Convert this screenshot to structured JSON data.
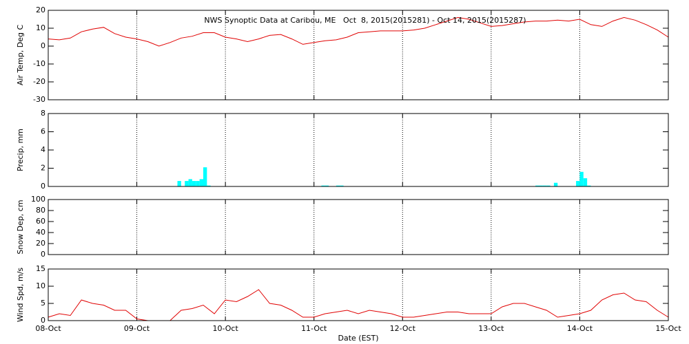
{
  "chart_data": [
    {
      "type": "line",
      "title": "NWS Synoptic Data at Caribou, ME   Oct  8, 2015(2015281) - Oct 14, 2015(2015287)",
      "y_label": "Air Temp, Deg C",
      "x": [
        0,
        3,
        6,
        9,
        12,
        15,
        18,
        21,
        24,
        27,
        30,
        33,
        36,
        39,
        42,
        45,
        48,
        51,
        54,
        57,
        60,
        63,
        66,
        69,
        72,
        75,
        78,
        81,
        84,
        87,
        90,
        93,
        96,
        99,
        102,
        105,
        108,
        111,
        114,
        117,
        120,
        123,
        126,
        129,
        132,
        135,
        138,
        141,
        144,
        147,
        150,
        153,
        156,
        159,
        162,
        165,
        168
      ],
      "series": [
        {
          "color": "#e00000",
          "values": [
            4,
            3.5,
            4.5,
            8,
            9.5,
            10.5,
            7,
            5,
            4,
            2.5,
            0,
            2,
            4.5,
            5.5,
            7.5,
            7.5,
            5,
            4,
            2.5,
            4,
            6,
            6.5,
            4,
            1,
            2,
            3,
            3.5,
            5,
            7.5,
            8,
            8.5,
            8.5,
            8.5,
            9,
            10,
            12,
            14,
            16,
            15,
            13,
            11,
            11.5,
            12.5,
            13.5,
            14,
            14,
            14.5,
            14,
            15,
            12,
            11,
            14,
            16,
            14.5,
            12,
            9,
            5
          ]
        }
      ],
      "xlim": [
        0,
        168
      ],
      "xticks": [
        0,
        24,
        48,
        72,
        96,
        120,
        144,
        168
      ],
      "ylim": [
        -30,
        20
      ],
      "yticks": [
        -30,
        -20,
        -10,
        0,
        10,
        20
      ],
      "grid": true
    },
    {
      "type": "bar",
      "y_label": "Precip, mm",
      "x": [
        35,
        37,
        38,
        39,
        40,
        41,
        42,
        43,
        74,
        75,
        78,
        79,
        132,
        133,
        134,
        135,
        137,
        143,
        144,
        145,
        146
      ],
      "series": [
        {
          "color": "#00ffff",
          "values": [
            0.6,
            0.6,
            0.8,
            0.6,
            0.6,
            0.8,
            2.1,
            0.1,
            0.1,
            0.1,
            0.1,
            0.1,
            0.1,
            0.1,
            0.1,
            0.1,
            0.4,
            0.6,
            1.6,
            0.9,
            0.1
          ]
        }
      ],
      "xlim": [
        0,
        168
      ],
      "xticks": [
        0,
        24,
        48,
        72,
        96,
        120,
        144,
        168
      ],
      "ylim": [
        0,
        8
      ],
      "yticks": [
        0,
        2,
        4,
        6,
        8
      ],
      "grid": true
    },
    {
      "type": "line",
      "y_label": "Snow Dep, cm",
      "xlim": [
        0,
        168
      ],
      "xticks": [
        0,
        24,
        48,
        72,
        96,
        120,
        144,
        168
      ],
      "ylim": [
        0,
        100
      ],
      "yticks": [
        0,
        20,
        40,
        60,
        80,
        100
      ],
      "grid": true
    },
    {
      "type": "line",
      "y_label": "Wind Spd, m/s",
      "x_label": "Date (EST)",
      "x": [
        0,
        3,
        6,
        9,
        12,
        15,
        18,
        21,
        24,
        27,
        30,
        33,
        36,
        39,
        42,
        45,
        48,
        51,
        54,
        57,
        60,
        63,
        66,
        69,
        72,
        75,
        78,
        81,
        84,
        87,
        90,
        93,
        96,
        99,
        102,
        105,
        108,
        111,
        114,
        117,
        120,
        123,
        126,
        129,
        132,
        135,
        138,
        141,
        144,
        147,
        150,
        153,
        156,
        159,
        162,
        165,
        168
      ],
      "series": [
        {
          "color": "#e00000",
          "values": [
            1,
            2,
            1.5,
            6,
            5,
            4.5,
            3,
            3,
            0.5,
            0,
            0,
            0,
            3,
            3.5,
            4.5,
            2,
            6,
            5.5,
            7,
            9,
            5,
            4.5,
            3,
            1,
            1,
            2,
            2.5,
            3,
            2,
            3,
            2.5,
            2,
            1,
            1,
            1.5,
            2,
            2.5,
            2.5,
            2,
            2,
            2,
            4,
            5,
            5,
            4,
            3,
            1,
            1.5,
            2,
            3,
            6,
            7.5,
            8,
            6,
            5.5,
            3,
            1
          ]
        }
      ],
      "xlim": [
        0,
        168
      ],
      "xticks": [
        {
          "value": 0,
          "label": "08-Oct"
        },
        {
          "value": 24,
          "label": "09-Oct"
        },
        {
          "value": 48,
          "label": "10-Oct"
        },
        {
          "value": 72,
          "label": "11-Oct"
        },
        {
          "value": 96,
          "label": "12-Oct"
        },
        {
          "value": 120,
          "label": "13-Oct"
        },
        {
          "value": 144,
          "label": "14-Oct"
        },
        {
          "value": 168,
          "label": "15-Oct"
        }
      ],
      "ylim": [
        0,
        15
      ],
      "yticks": [
        0,
        5,
        10,
        15
      ],
      "grid": true
    }
  ]
}
